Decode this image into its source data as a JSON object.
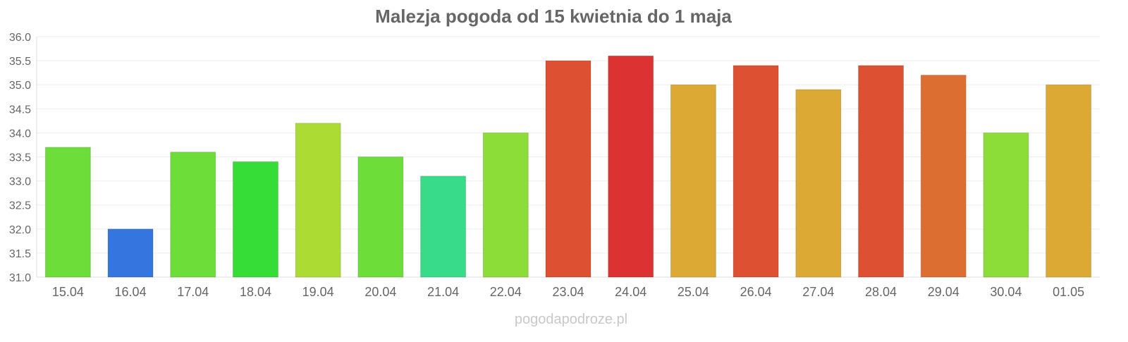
{
  "chart_data": {
    "type": "bar",
    "title": "Malezja pogoda od 15 kwietnia do 1 maja",
    "xlabel": "",
    "ylabel": "",
    "ylim": [
      31.0,
      36.0
    ],
    "yticks": [
      "31.0",
      "31.5",
      "32.0",
      "32.5",
      "33.0",
      "33.5",
      "34.0",
      "34.5",
      "35.0",
      "35.5",
      "36.0"
    ],
    "grid": true,
    "categories": [
      "15.04",
      "16.04",
      "17.04",
      "18.04",
      "19.04",
      "20.04",
      "21.04",
      "22.04",
      "23.04",
      "24.04",
      "25.04",
      "26.04",
      "27.04",
      "28.04",
      "29.04",
      "30.04",
      "01.05"
    ],
    "values": [
      33.7,
      32.0,
      33.6,
      33.4,
      34.2,
      33.5,
      33.1,
      34.0,
      35.5,
      35.6,
      35.0,
      35.4,
      34.9,
      35.4,
      35.2,
      34.0,
      35.0
    ],
    "colors": [
      "#6ddd39",
      "#3575e0",
      "#6ddd39",
      "#36dd36",
      "#acdc34",
      "#6ddd39",
      "#38db8a",
      "#8cdd37",
      "#dd5032",
      "#dd3232",
      "#dcaa34",
      "#dd5032",
      "#dcaa34",
      "#dd5032",
      "#dd6e32",
      "#8cdd37",
      "#dcaa34"
    ]
  },
  "watermark": "pogodapodroze.pl"
}
